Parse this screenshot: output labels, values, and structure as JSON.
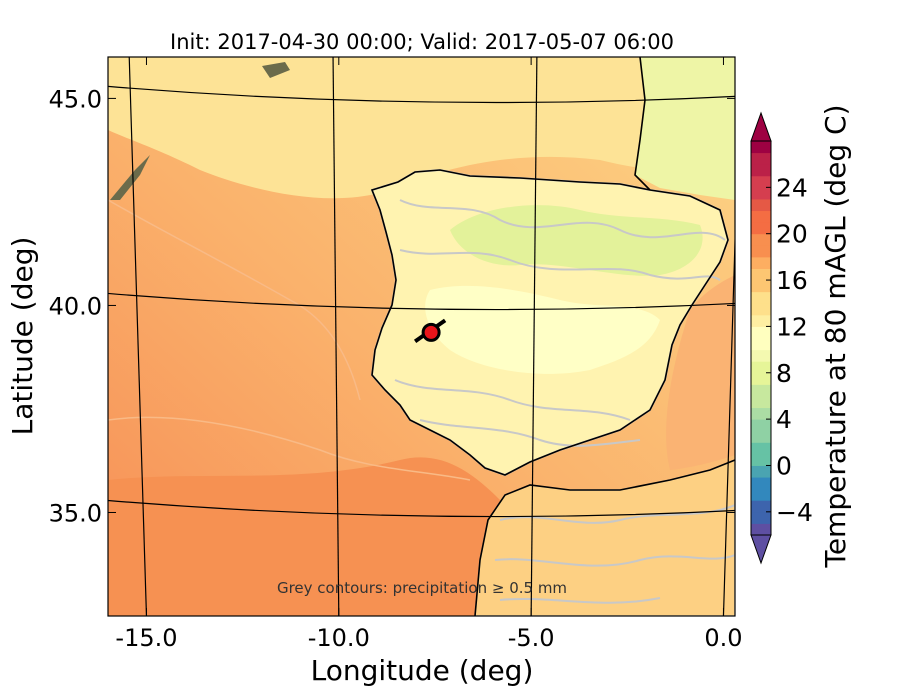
{
  "chart_data": {
    "type": "heatmap",
    "title": "Init: 2017-04-30 00:00; Valid: 2017-05-07 06:00",
    "xlabel": "Longitude (deg)",
    "ylabel": "Latitude (deg)",
    "xlim": [
      -16.0,
      0.3
    ],
    "ylim": [
      32.5,
      46.0
    ],
    "x_ticks": [
      {
        "value": -15.0,
        "label": "-15.0"
      },
      {
        "value": -10.0,
        "label": "-10.0"
      },
      {
        "value": -5.0,
        "label": "-5.0"
      },
      {
        "value": 0.0,
        "label": "0.0"
      }
    ],
    "y_ticks": [
      {
        "value": 35.0,
        "label": "35.0"
      },
      {
        "value": 40.0,
        "label": "40.0"
      },
      {
        "value": 45.0,
        "label": "45.0"
      }
    ],
    "colorbar": {
      "label": "Temperature at 80 mAGL (deg C)",
      "range": [
        -6,
        28
      ],
      "extend": "both",
      "ticks": [
        {
          "value": -4,
          "label": "−4"
        },
        {
          "value": 0,
          "label": "0"
        },
        {
          "value": 4,
          "label": "4"
        },
        {
          "value": 8,
          "label": "8"
        },
        {
          "value": 12,
          "label": "12"
        },
        {
          "value": 16,
          "label": "16"
        },
        {
          "value": 20,
          "label": "20"
        },
        {
          "value": 24,
          "label": "24"
        }
      ]
    },
    "annotation": "Grey contours: precipitation ≥ 0.5 mm",
    "marker": {
      "lon": -7.6,
      "lat": 39.35,
      "color": "#e8141a"
    },
    "colors": {
      "ocean_warm": "#f89c5c",
      "ocean_mid": "#fbc67a",
      "ocean_cool": "#fde08f",
      "land_cool": "#fff7b5",
      "land_green": "#d9ef8b",
      "precip_contour": "#c8c8c8"
    }
  }
}
